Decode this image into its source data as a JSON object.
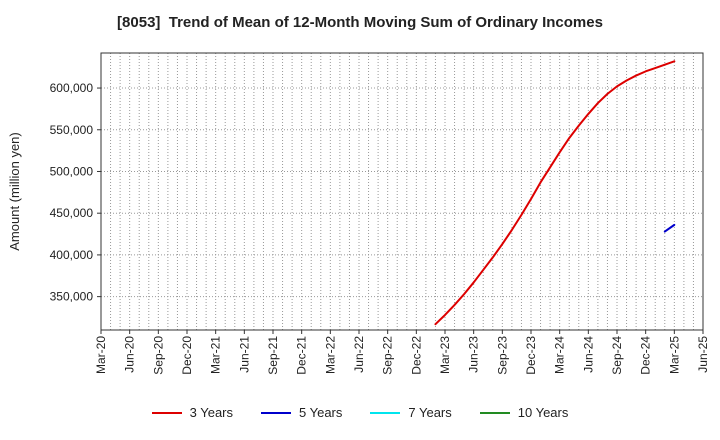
{
  "chart_data": {
    "type": "line",
    "title": "[8053]  Trend of Mean of 12-Month Moving Sum of Ordinary Incomes",
    "xlabel": "",
    "ylabel": "Amount (million yen)",
    "x_ticks": [
      "Mar-20",
      "Jun-20",
      "Sep-20",
      "Dec-20",
      "Mar-21",
      "Jun-21",
      "Sep-21",
      "Dec-21",
      "Mar-22",
      "Jun-22",
      "Sep-22",
      "Dec-22",
      "Mar-23",
      "Jun-23",
      "Sep-23",
      "Dec-23",
      "Mar-24",
      "Jun-24",
      "Sep-24",
      "Dec-24",
      "Mar-25",
      "Jun-25"
    ],
    "y_ticks": [
      350000,
      400000,
      450000,
      500000,
      550000,
      600000
    ],
    "y_tick_labels": [
      "350,000",
      "400,000",
      "450,000",
      "500,000",
      "550,000",
      "600,000"
    ],
    "ylim": [
      310000,
      642000
    ],
    "xlim": [
      "Mar-20",
      "Jun-25"
    ],
    "grid": true,
    "legend_position": "bottom",
    "series": [
      {
        "name": "3 Years",
        "color": "#dd0000",
        "points": [
          [
            "Feb-23",
            317000
          ],
          [
            "Mar-23",
            328000
          ],
          [
            "Apr-23",
            340000
          ],
          [
            "May-23",
            353000
          ],
          [
            "Jun-23",
            367000
          ],
          [
            "Jul-23",
            382000
          ],
          [
            "Aug-23",
            397000
          ],
          [
            "Sep-23",
            413000
          ],
          [
            "Oct-23",
            430000
          ],
          [
            "Nov-23",
            448000
          ],
          [
            "Dec-23",
            467000
          ],
          [
            "Jan-24",
            487000
          ],
          [
            "Feb-24",
            505000
          ],
          [
            "Mar-24",
            523000
          ],
          [
            "Apr-24",
            540000
          ],
          [
            "May-24",
            555000
          ],
          [
            "Jun-24",
            569000
          ],
          [
            "Jul-24",
            582000
          ],
          [
            "Aug-24",
            593000
          ],
          [
            "Sep-24",
            602000
          ],
          [
            "Oct-24",
            609000
          ],
          [
            "Nov-24",
            615000
          ],
          [
            "Dec-24",
            620000
          ],
          [
            "Jan-25",
            624000
          ],
          [
            "Feb-25",
            628000
          ],
          [
            "Mar-25",
            632000
          ]
        ]
      },
      {
        "name": "5 Years",
        "color": "#0000cc",
        "points": [
          [
            "Feb-25",
            428000
          ],
          [
            "Mar-25",
            436000
          ]
        ]
      },
      {
        "name": "7 Years",
        "color": "#00e5ee",
        "points": []
      },
      {
        "name": "10 Years",
        "color": "#228b22",
        "points": []
      }
    ]
  }
}
